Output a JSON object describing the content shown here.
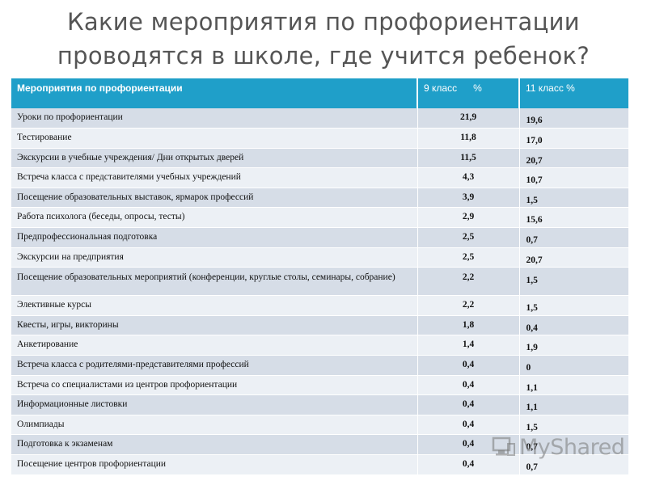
{
  "title": {
    "line1": "Какие мероприятия по профориентации",
    "line2": "проводятся в школе, где учится ребенок?"
  },
  "table": {
    "headers": [
      "Мероприятия по профориентации",
      "9 класс      %",
      "11 класс %"
    ],
    "rows": [
      {
        "activity": "Уроки по профориентации",
        "grade9": "21,9",
        "grade11": "19,6"
      },
      {
        "activity": "Тестирование",
        "grade9": "11,8",
        "grade11": "17,0"
      },
      {
        "activity": "Экскурсии в учебные учреждения/ Дни открытых дверей",
        "grade9": "11,5",
        "grade11": "20,7"
      },
      {
        "activity": "Встреча класса с представителями учебных учреждений",
        "grade9": "4,3",
        "grade11": "10,7"
      },
      {
        "activity": "Посещение образовательных выставок, ярмарок профессий",
        "grade9": "3,9",
        "grade11": "1,5"
      },
      {
        "activity": "Работа психолога (беседы, опросы, тесты)",
        "grade9": "2,9",
        "grade11": "15,6"
      },
      {
        "activity": "Предпрофессиональная подготовка",
        "grade9": "2,5",
        "grade11": "0,7"
      },
      {
        "activity": "Экскурсии на предприятия",
        "grade9": "2,5",
        "grade11": "20,7"
      },
      {
        "activity": "Посещение образовательных мероприятий (конференции, круглые столы, семинары, собрание)",
        "grade9": "2,2",
        "grade11": "1,5"
      },
      {
        "activity": "Элективные курсы",
        "grade9": "2,2",
        "grade11": "1,5"
      },
      {
        "activity": "Квесты, игры, викторины",
        "grade9": "1,8",
        "grade11": "0,4"
      },
      {
        "activity": "Анкетирование",
        "grade9": "1,4",
        "grade11": "1,9"
      },
      {
        "activity": "Встреча класса с родителями-представителями профессий",
        "grade9": "0,4",
        "grade11": "0"
      },
      {
        "activity": "Встреча со специалистами из центров профориентации",
        "grade9": "0,4",
        "grade11": "1,1"
      },
      {
        "activity": "Информационные листовки",
        "grade9": "0,4",
        "grade11": "1,1"
      },
      {
        "activity": "Олимпиады",
        "grade9": "0,4",
        "grade11": "1,5"
      },
      {
        "activity": "Подготовка к экзаменам",
        "grade9": "0,4",
        "grade11": "0,7"
      },
      {
        "activity": "Посещение центров профориентации",
        "grade9": "0,4",
        "grade11": "0,7"
      }
    ]
  },
  "colors": {
    "header_bg": "#1f9fc9",
    "row_odd": "#d6dde7",
    "row_even": "#ecf0f5",
    "title_text": "#555555"
  },
  "watermark": {
    "text": "MyShared",
    "icon": "myshared-logo-icon"
  }
}
